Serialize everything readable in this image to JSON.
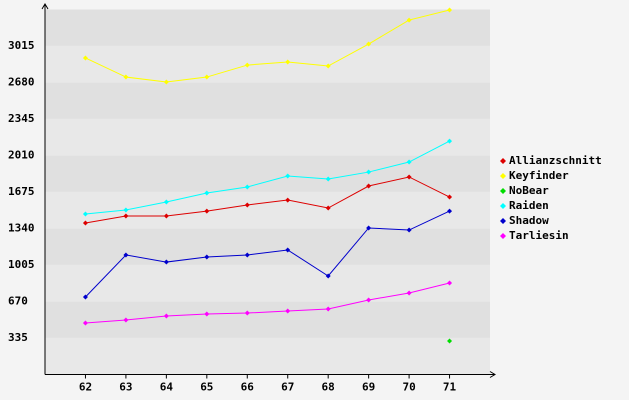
{
  "chart_data": {
    "type": "line",
    "categories": [
      "62",
      "63",
      "64",
      "65",
      "66",
      "67",
      "68",
      "69",
      "70",
      "71"
    ],
    "series": [
      {
        "name": "Allianzschnitt",
        "color": "#dd0000",
        "values": [
          1390,
          1455,
          1455,
          1500,
          1556,
          1601,
          1528,
          1730,
          1813,
          1629
        ]
      },
      {
        "name": "Keyfinder",
        "color": "#ffff00",
        "values": [
          2905,
          2730,
          2685,
          2730,
          2840,
          2868,
          2831,
          3033,
          3253,
          3345
        ]
      },
      {
        "name": "NoBear",
        "color": "#00dd00",
        "values": [
          null,
          null,
          null,
          null,
          null,
          null,
          null,
          null,
          null,
          307
        ]
      },
      {
        "name": "Raiden",
        "color": "#00ffff",
        "values": [
          1473,
          1510,
          1583,
          1666,
          1721,
          1822,
          1794,
          1858,
          1950,
          2142
        ]
      },
      {
        "name": "Shadow",
        "color": "#0000cc",
        "values": [
          711,
          1097,
          1032,
          1078,
          1097,
          1143,
          904,
          1345,
          1326,
          1500
        ]
      },
      {
        "name": "Tarliesin",
        "color": "#ff00ff",
        "values": [
          473,
          500,
          537,
          555,
          564,
          583,
          601,
          684,
          748,
          840
        ]
      }
    ],
    "ylim": [
      0,
      3350
    ],
    "yticks": [
      335,
      670,
      1005,
      1340,
      1675,
      2010,
      2345,
      2680,
      3015
    ],
    "grid": true
  }
}
